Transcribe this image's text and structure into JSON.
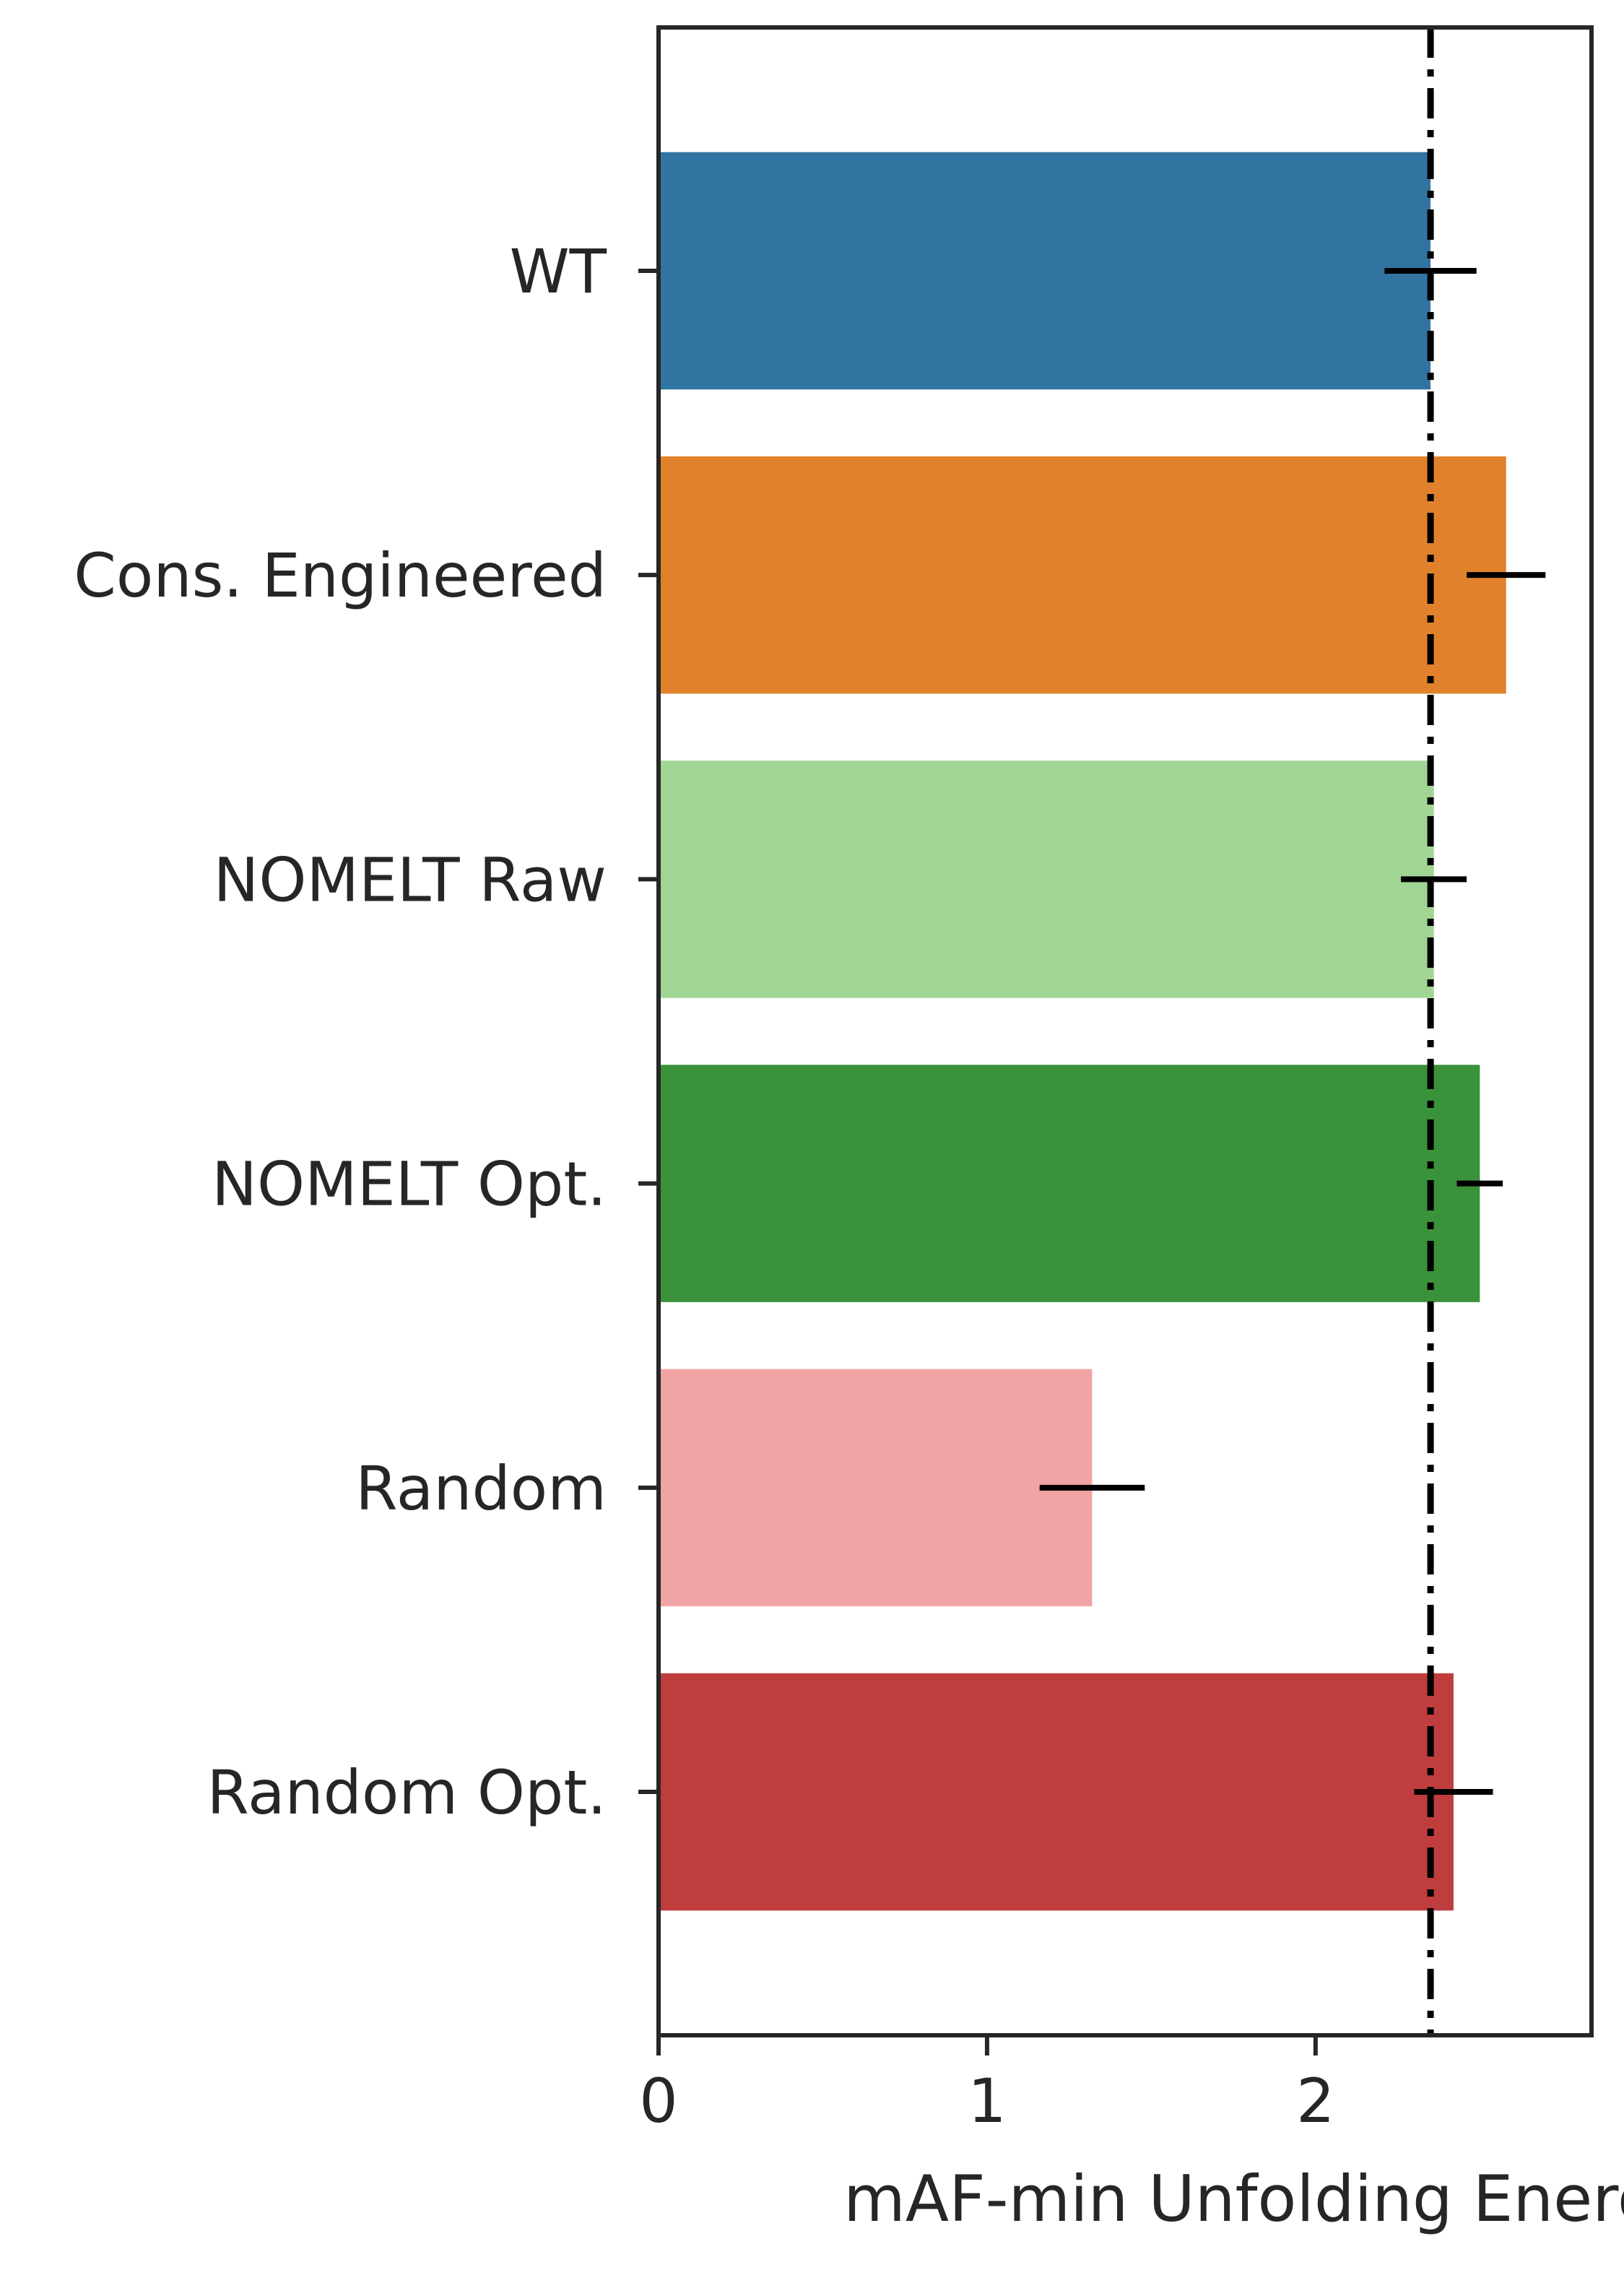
{
  "chart_data": {
    "type": "bar",
    "orientation": "horizontal",
    "title": "",
    "xlabel": "mAF-min Unfolding Energy",
    "ylabel": "",
    "xlim": [
      0,
      2.84
    ],
    "xticks": [
      "0",
      "1",
      "2"
    ],
    "grid": false,
    "legend": "none",
    "categories": [
      "WT",
      "Cons. Engineered",
      "NOMELT Raw",
      "NOMELT Opt.",
      "Random",
      "Random Opt."
    ],
    "values": [
      2.35,
      2.58,
      2.36,
      2.5,
      1.32,
      2.42
    ],
    "errors": [
      0.14,
      0.12,
      0.1,
      0.07,
      0.16,
      0.12
    ],
    "colors": [
      "#3274a1",
      "#e1812c",
      "#a1d594",
      "#3a923a",
      "#f1a4a4",
      "#c03d3e"
    ],
    "reference_line": {
      "value": 2.35,
      "style": "dash-dot",
      "color": "#000000"
    }
  }
}
